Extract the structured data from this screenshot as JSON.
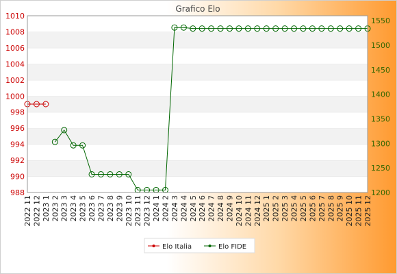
{
  "chart_data": {
    "type": "line",
    "title": "Grafico Elo",
    "legend": "bottom",
    "grid": true,
    "x": [
      "2022 11",
      "2022 12",
      "2023 1",
      "2023 2",
      "2023 3",
      "2023 4",
      "2023 5",
      "2023 6",
      "2023 7",
      "2023 8",
      "2023 9",
      "2023 10",
      "2023 11",
      "2023 12",
      "2024 1",
      "2024 2",
      "2024 3",
      "2024 4",
      "2024 5",
      "2024 6",
      "2024 7",
      "2024 8",
      "2024 9",
      "2024 10",
      "2024 11",
      "2024 12",
      "2025 1",
      "2025 2",
      "2025 3",
      "2025 4",
      "2025 5",
      "2025 6",
      "2025 7",
      "2025 8",
      "2025 9",
      "2025 10",
      "2025 11",
      "2025 12"
    ],
    "y_left": {
      "ylim": [
        988,
        1010
      ],
      "ticks": [
        988,
        990,
        992,
        994,
        996,
        998,
        1000,
        1002,
        1004,
        1006,
        1008,
        1010
      ],
      "color": "#cc0000"
    },
    "y_right": {
      "ylim": [
        1200,
        1560
      ],
      "ticks": [
        1200,
        1250,
        1300,
        1350,
        1400,
        1450,
        1500,
        1550
      ],
      "color": "#336600"
    },
    "series": [
      {
        "name": "Elo Italia",
        "axis": "left",
        "color": "#cc0000",
        "values": [
          999,
          999,
          999,
          null,
          null,
          null,
          null,
          null,
          null,
          null,
          null,
          null,
          null,
          null,
          null,
          null,
          null,
          null,
          null,
          null,
          null,
          null,
          null,
          null,
          null,
          null,
          null,
          null,
          null,
          null,
          null,
          null,
          null,
          null,
          null,
          null,
          null,
          null
        ]
      },
      {
        "name": "Elo FIDE",
        "axis": "right",
        "color": "#006600",
        "values": [
          null,
          null,
          null,
          1303,
          1327,
          1296,
          1296,
          1237,
          1237,
          1237,
          1237,
          1237,
          1205,
          1205,
          1205,
          1205,
          1536,
          1536,
          1534,
          1534,
          1534,
          1534,
          1534,
          1534,
          1534,
          1534,
          1534,
          1534,
          1534,
          1534,
          1534,
          1534,
          1534,
          1534,
          1534,
          1534,
          1534,
          1534
        ]
      }
    ]
  }
}
